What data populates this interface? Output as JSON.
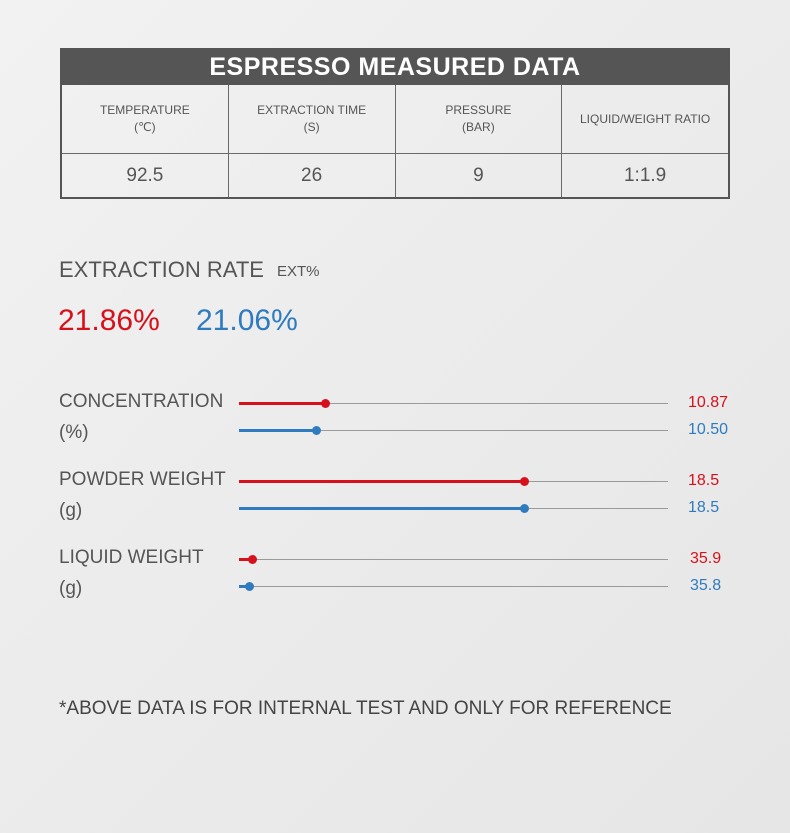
{
  "table": {
    "title": "ESPRESSO MEASURED DATA",
    "headers": [
      {
        "line1": "TEMPERATURE",
        "line2": "(℃)"
      },
      {
        "line1": "EXTRACTION TIME",
        "line2": "(S)"
      },
      {
        "line1": "PRESSURE",
        "line2": "(BAR)"
      },
      {
        "line1": "LIQUID/WEIGHT RATIO",
        "line2": ""
      }
    ],
    "values": [
      "92.5",
      "26",
      "9",
      "1:1.9"
    ]
  },
  "extraction": {
    "title": "EXTRACTION RATE",
    "subtitle": "EXT%",
    "value_red": "21.86%",
    "value_blue": "21.06%"
  },
  "colors": {
    "red": "#d7111b",
    "blue": "#2f7bc0"
  },
  "metrics": [
    {
      "label": "CONCENTRATION",
      "unit": "(%)",
      "red": {
        "value": "10.87",
        "fill_fraction": 0.2
      },
      "blue": {
        "value": "10.50",
        "fill_fraction": 0.18
      }
    },
    {
      "label": "POWDER WEIGHT",
      "unit": "(g)",
      "red": {
        "value": "18.5",
        "fill_fraction": 0.665
      },
      "blue": {
        "value": "18.5",
        "fill_fraction": 0.665
      }
    },
    {
      "label": "LIQUID WEIGHT",
      "unit": "(g)",
      "red": {
        "value": "35.9",
        "fill_fraction": 0.03
      },
      "blue": {
        "value": "35.8",
        "fill_fraction": 0.023
      }
    }
  ],
  "footnote": "*ABOVE DATA IS FOR INTERNAL TEST AND ONLY FOR REFERENCE"
}
